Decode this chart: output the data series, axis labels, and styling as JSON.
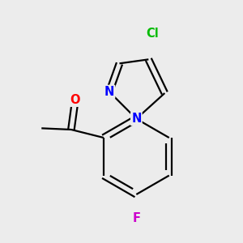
{
  "background_color": "#ececec",
  "bond_color": "#000000",
  "bond_width": 1.6,
  "atoms": {
    "Cl": {
      "color": "#00bb00",
      "fontsize": 10.5,
      "fontweight": "bold"
    },
    "N": {
      "color": "#0000ff",
      "fontsize": 10.5,
      "fontweight": "bold"
    },
    "O": {
      "color": "#ff0000",
      "fontsize": 10.5,
      "fontweight": "bold"
    },
    "F": {
      "color": "#cc00cc",
      "fontsize": 10.5,
      "fontweight": "bold"
    }
  },
  "figsize": [
    3.0,
    3.0
  ],
  "dpi": 100,
  "xlim": [
    -1.6,
    1.6
  ],
  "ylim": [
    -1.8,
    1.8
  ]
}
